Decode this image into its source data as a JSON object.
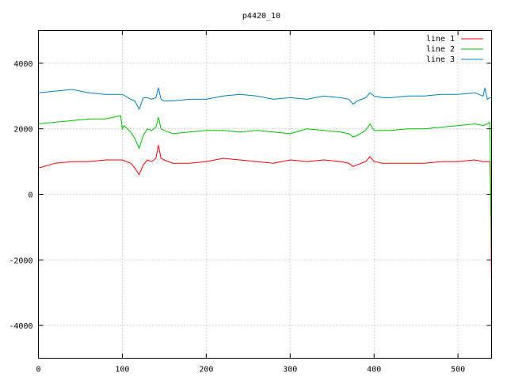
{
  "chart_data": {
    "type": "line",
    "title": "p4420_10",
    "xlabel": "",
    "ylabel": "",
    "xlim": [
      0,
      540
    ],
    "ylim": [
      -5000,
      5000
    ],
    "xticks": [
      0,
      100,
      200,
      300,
      400,
      500
    ],
    "yticks": [
      -4000,
      -2000,
      0,
      2000,
      4000
    ],
    "grid": true,
    "legend_position": "top-right",
    "series": [
      {
        "name": "line 1",
        "color": "#ff0000",
        "x": [
          0,
          20,
          40,
          60,
          80,
          100,
          110,
          115,
          120,
          125,
          130,
          135,
          140,
          143,
          146,
          150,
          160,
          180,
          200,
          220,
          240,
          260,
          280,
          300,
          320,
          340,
          360,
          370,
          375,
          380,
          390,
          395,
          400,
          410,
          420,
          440,
          460,
          480,
          500,
          520,
          530,
          535,
          538,
          539,
          540
        ],
        "y": [
          800,
          950,
          1000,
          1000,
          1050,
          1050,
          950,
          800,
          600,
          900,
          1050,
          1000,
          1100,
          1500,
          1100,
          1050,
          950,
          950,
          1000,
          1100,
          1050,
          1000,
          950,
          1050,
          1000,
          1050,
          1000,
          950,
          850,
          900,
          1000,
          1150,
          1000,
          950,
          950,
          950,
          950,
          1000,
          1000,
          1050,
          1000,
          1000,
          1000,
          0,
          -3000
        ]
      },
      {
        "name": "line 2",
        "color": "#00c000",
        "x": [
          0,
          20,
          40,
          60,
          80,
          98,
          100,
          102,
          110,
          115,
          120,
          125,
          130,
          135,
          140,
          143,
          146,
          150,
          160,
          180,
          200,
          220,
          240,
          260,
          280,
          300,
          320,
          340,
          360,
          370,
          375,
          380,
          390,
          395,
          400,
          410,
          420,
          440,
          460,
          480,
          500,
          520,
          530,
          535,
          538,
          539,
          540
        ],
        "y": [
          2150,
          2200,
          2250,
          2300,
          2300,
          2400,
          2000,
          2100,
          1900,
          1700,
          1400,
          1800,
          2000,
          1950,
          2050,
          2350,
          2000,
          1950,
          1850,
          1900,
          1950,
          1950,
          1900,
          1950,
          1900,
          1850,
          2000,
          1950,
          1900,
          1850,
          1750,
          1800,
          1950,
          2150,
          1950,
          1950,
          1950,
          2000,
          2000,
          2050,
          2100,
          2150,
          2100,
          2150,
          2200,
          0,
          -1800
        ]
      },
      {
        "name": "line 3",
        "color": "#0080c0",
        "x": [
          0,
          20,
          40,
          60,
          80,
          100,
          110,
          115,
          120,
          125,
          130,
          135,
          140,
          143,
          146,
          150,
          160,
          180,
          200,
          220,
          240,
          260,
          280,
          300,
          320,
          340,
          360,
          370,
          375,
          380,
          390,
          395,
          400,
          410,
          420,
          440,
          460,
          480,
          500,
          520,
          530,
          532,
          535,
          538,
          540
        ],
        "y": [
          3100,
          3150,
          3200,
          3100,
          3050,
          3050,
          2900,
          2850,
          2600,
          2950,
          2950,
          2900,
          2950,
          3250,
          2900,
          2850,
          2850,
          2900,
          2900,
          3000,
          3050,
          3000,
          2900,
          2950,
          2900,
          3000,
          2950,
          2900,
          2750,
          2850,
          2950,
          3100,
          3000,
          2950,
          2950,
          3000,
          3000,
          3050,
          3050,
          3100,
          3000,
          3250,
          2900,
          2950,
          2950
        ]
      }
    ]
  }
}
